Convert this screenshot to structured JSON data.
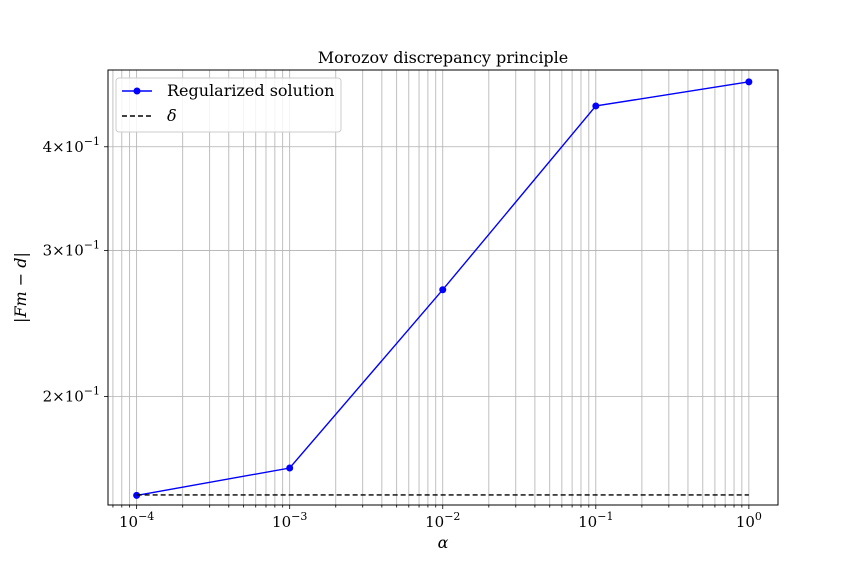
{
  "chart_data": {
    "type": "line",
    "title": "Morozov discrepancy principle",
    "xlabel": "α",
    "ylabel": "|Fm − d|",
    "xscale": "log",
    "yscale": "log",
    "xlim": [
      6.5e-05,
      1.55
    ],
    "ylim": [
      0.148,
      0.495
    ],
    "grid": "both, major and minor",
    "legend": "upper left",
    "x_ticks": [
      {
        "base": "10",
        "exp": "−4"
      },
      {
        "base": "10",
        "exp": "−3"
      },
      {
        "base": "10",
        "exp": "−2"
      },
      {
        "base": "10",
        "exp": "−1"
      },
      {
        "base": "10",
        "exp": "0"
      }
    ],
    "y_ticks": [
      {
        "mant": "2",
        "base": "10",
        "exp": "−1"
      },
      {
        "mant": "3",
        "base": "10",
        "exp": "−1"
      },
      {
        "mant": "4",
        "base": "10",
        "exp": "−1"
      }
    ],
    "series": [
      {
        "name": "Regularized solution",
        "color": "#0000ff",
        "style": "solid",
        "marker": "circle",
        "x": [
          0.0001,
          0.001,
          0.01,
          0.1,
          1
        ],
        "y": [
          0.152,
          0.164,
          0.269,
          0.448,
          0.479
        ]
      },
      {
        "name": "δ",
        "color": "#000000",
        "style": "dashed",
        "marker": "none",
        "x": [
          0.0001,
          1
        ],
        "y": [
          0.1522,
          0.1522
        ]
      }
    ]
  }
}
